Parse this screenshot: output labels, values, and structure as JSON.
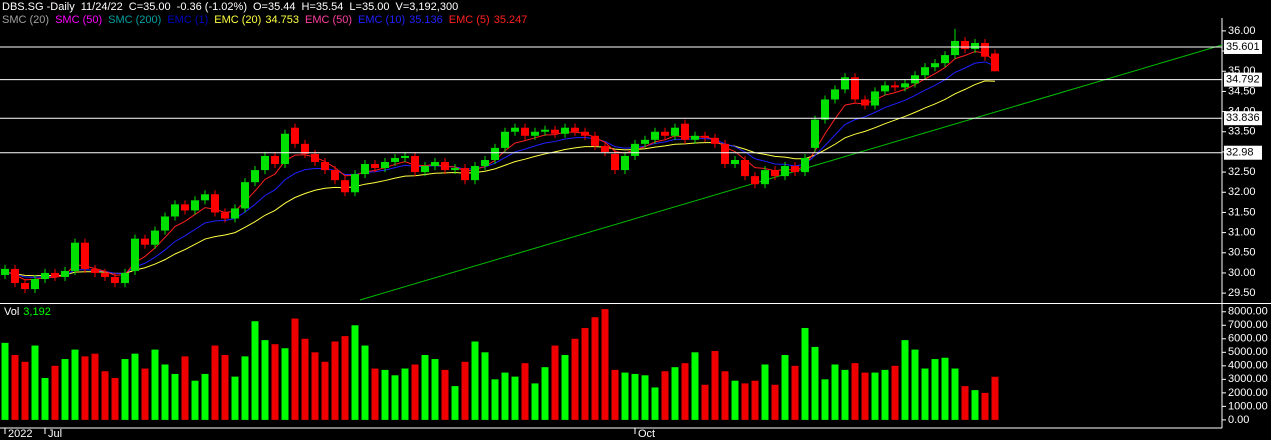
{
  "chart_data": {
    "type": "candlestick",
    "header": [
      "DBS.SG -Daily",
      "11/24/22",
      "C=35.00",
      "-0.36 (-1.02%)",
      "O=35.44",
      "H=35.54",
      "L=35.00",
      "V=3,192,300"
    ],
    "legend": [
      {
        "name": "SMC (20)",
        "color": "#a0a0a0"
      },
      {
        "name": "SMC (50)",
        "color": "#ff00ff"
      },
      {
        "name": "SMC (200)",
        "color": "#00a0a0"
      },
      {
        "name": "EMC (1)",
        "color": "#0000c0"
      },
      {
        "name": "EMC (20)",
        "value": 34.753,
        "color": "#ffff40"
      },
      {
        "name": "EMC (50)",
        "color": "#ff40a0"
      },
      {
        "name": "EMC (10)",
        "value": 35.136,
        "color": "#2020ff"
      },
      {
        "name": "EMC (5)",
        "value": 35.247,
        "color": "#ff2020"
      }
    ],
    "categories": [
      "2022",
      null,
      null,
      null,
      "Jul",
      null,
      null,
      null,
      null,
      null,
      null,
      null,
      null,
      null,
      null,
      null,
      null,
      null,
      null,
      null,
      null,
      null,
      null,
      null,
      null,
      null,
      null,
      null,
      null,
      null,
      null,
      null,
      null,
      null,
      null,
      null,
      null,
      null,
      null,
      null,
      null,
      null,
      null,
      null,
      null,
      null,
      null,
      null,
      null,
      null,
      null,
      null,
      null,
      null,
      null,
      null,
      null,
      null,
      null,
      null,
      null,
      null,
      null,
      "Oct",
      null,
      null,
      null,
      null,
      null,
      null,
      null,
      null,
      null,
      null,
      null,
      null,
      null,
      null,
      null,
      null,
      null,
      null,
      null,
      null,
      null,
      null,
      null,
      null,
      null,
      null,
      null,
      null,
      null,
      null,
      null,
      null,
      null,
      null,
      null,
      null
    ],
    "open": [
      29.95,
      30.1,
      29.75,
      29.6,
      29.85,
      30.0,
      29.9,
      30.05,
      30.75,
      30.1,
      30.0,
      29.9,
      29.75,
      30.05,
      30.85,
      30.7,
      31.05,
      31.4,
      31.7,
      31.55,
      31.8,
      31.95,
      31.5,
      31.35,
      31.6,
      32.25,
      32.55,
      32.9,
      32.7,
      33.6,
      33.2,
      32.95,
      32.75,
      32.55,
      32.3,
      32.0,
      32.45,
      32.7,
      32.6,
      32.75,
      32.85,
      32.9,
      32.5,
      32.65,
      32.75,
      32.55,
      32.6,
      32.3,
      32.65,
      32.8,
      33.1,
      33.5,
      33.6,
      33.4,
      33.5,
      33.55,
      33.45,
      33.6,
      33.5,
      33.4,
      33.15,
      32.95,
      32.55,
      32.9,
      33.2,
      33.3,
      33.5,
      33.4,
      33.7,
      33.3,
      33.4,
      33.35,
      33.2,
      32.7,
      32.8,
      32.4,
      32.2,
      32.55,
      32.4,
      32.65,
      32.5,
      33.1,
      33.8,
      34.3,
      34.55,
      34.85,
      34.3,
      34.15,
      34.5,
      34.65,
      34.6,
      34.7,
      34.9,
      35.1,
      35.2,
      35.4,
      35.75,
      35.55,
      35.7,
      35.44
    ],
    "high": [
      30.2,
      30.2,
      29.85,
      29.95,
      30.1,
      30.1,
      30.15,
      30.85,
      30.85,
      30.2,
      30.1,
      30.0,
      30.1,
      30.95,
      30.95,
      31.15,
      31.5,
      31.8,
      31.8,
      31.9,
      32.05,
      32.05,
      31.6,
      31.7,
      32.35,
      32.65,
      33.0,
      33.0,
      33.55,
      33.7,
      33.3,
      33.05,
      32.85,
      32.65,
      32.4,
      32.55,
      32.8,
      32.8,
      32.85,
      32.95,
      33.0,
      33.0,
      32.75,
      32.85,
      32.85,
      32.7,
      32.7,
      32.75,
      32.9,
      33.2,
      33.6,
      33.7,
      33.7,
      33.6,
      33.65,
      33.65,
      33.7,
      33.7,
      33.6,
      33.5,
      33.25,
      33.05,
      33.0,
      33.3,
      33.4,
      33.6,
      33.6,
      33.7,
      33.8,
      33.5,
      33.5,
      33.45,
      33.3,
      32.9,
      32.9,
      32.5,
      32.65,
      32.65,
      32.75,
      32.75,
      32.95,
      33.9,
      34.4,
      34.65,
      34.95,
      34.95,
      34.4,
      34.6,
      34.75,
      34.75,
      34.8,
      35.0,
      35.2,
      35.3,
      35.5,
      36.05,
      35.85,
      35.8,
      35.8,
      35.54
    ],
    "low": [
      29.85,
      29.65,
      29.5,
      29.5,
      29.75,
      29.8,
      29.8,
      29.95,
      30.0,
      29.9,
      29.8,
      29.65,
      29.65,
      29.95,
      30.6,
      30.6,
      30.95,
      31.3,
      31.45,
      31.45,
      31.7,
      31.4,
      31.25,
      31.25,
      31.5,
      32.15,
      32.45,
      32.6,
      32.6,
      33.1,
      32.85,
      32.65,
      32.45,
      32.2,
      31.9,
      31.9,
      32.35,
      32.5,
      32.5,
      32.65,
      32.75,
      32.4,
      32.4,
      32.55,
      32.45,
      32.45,
      32.2,
      32.2,
      32.55,
      32.7,
      33.0,
      33.4,
      33.3,
      33.3,
      33.4,
      33.35,
      33.35,
      33.4,
      33.3,
      33.05,
      32.9,
      32.45,
      32.45,
      32.8,
      33.1,
      33.2,
      33.3,
      33.3,
      33.2,
      33.2,
      33.25,
      33.1,
      32.6,
      32.6,
      32.3,
      32.1,
      32.1,
      32.3,
      32.3,
      32.4,
      32.4,
      33.0,
      33.7,
      34.2,
      34.45,
      34.2,
      34.05,
      34.05,
      34.4,
      34.5,
      34.5,
      34.6,
      34.8,
      35.0,
      35.1,
      35.3,
      35.45,
      35.45,
      35.26,
      35.0
    ],
    "close": [
      30.1,
      29.75,
      29.6,
      29.85,
      30.0,
      29.9,
      30.05,
      30.75,
      30.1,
      30.0,
      29.9,
      29.75,
      30.0,
      30.85,
      30.7,
      31.05,
      31.4,
      31.7,
      31.55,
      31.8,
      31.95,
      31.5,
      31.35,
      31.6,
      32.25,
      32.55,
      32.9,
      32.7,
      33.45,
      33.2,
      32.95,
      32.75,
      32.55,
      32.3,
      32.0,
      32.45,
      32.7,
      32.6,
      32.75,
      32.85,
      32.9,
      32.5,
      32.65,
      32.75,
      32.55,
      32.6,
      32.3,
      32.65,
      32.8,
      33.1,
      33.5,
      33.6,
      33.4,
      33.5,
      33.55,
      33.45,
      33.6,
      33.5,
      33.4,
      33.15,
      33.0,
      32.55,
      32.9,
      33.2,
      33.3,
      33.5,
      33.4,
      33.6,
      33.3,
      33.4,
      33.35,
      33.2,
      32.7,
      32.8,
      32.4,
      32.2,
      32.55,
      32.4,
      32.65,
      32.5,
      32.85,
      33.8,
      34.3,
      34.55,
      34.85,
      34.3,
      34.15,
      34.5,
      34.65,
      34.6,
      34.7,
      34.9,
      35.1,
      35.2,
      35.4,
      35.75,
      35.55,
      35.7,
      35.36,
      35.0
    ],
    "up_color": "#00e000",
    "down_color": "#ff0000",
    "lines": [
      {
        "color": "#ffff40",
        "values": [
          30.01,
          29.98,
          29.94,
          29.93,
          29.94,
          29.93,
          29.95,
          30.02,
          30.03,
          30.03,
          30.02,
          29.99,
          29.99,
          30.07,
          30.13,
          30.22,
          30.33,
          30.47,
          30.58,
          30.71,
          30.84,
          30.9,
          30.94,
          31.0,
          31.13,
          31.27,
          31.43,
          31.55,
          31.73,
          31.87,
          31.97,
          32.05,
          32.1,
          32.12,
          32.11,
          32.14,
          32.2,
          32.24,
          32.29,
          32.35,
          32.4,
          32.41,
          32.44,
          32.47,
          32.48,
          32.49,
          32.47,
          32.49,
          32.52,
          32.58,
          32.67,
          32.76,
          32.82,
          32.89,
          32.95,
          33.0,
          33.06,
          33.1,
          33.13,
          33.13,
          33.12,
          33.07,
          33.05,
          33.06,
          33.08,
          33.12,
          33.15,
          33.19,
          33.2,
          33.22,
          33.23,
          33.23,
          33.18,
          33.14,
          33.07,
          32.98,
          32.94,
          32.89,
          32.87,
          32.83,
          32.83,
          32.92,
          33.05,
          33.19,
          33.35,
          33.44,
          33.51,
          33.6,
          33.7,
          33.79,
          33.88,
          33.98,
          34.09,
          34.19,
          34.3,
          34.44,
          34.55,
          34.67,
          34.76,
          34.753
        ]
      },
      {
        "color": "#2020ff",
        "values": [
          30.02,
          29.97,
          29.9,
          29.89,
          29.91,
          29.91,
          29.93,
          30.08,
          30.08,
          30.07,
          30.04,
          29.99,
          29.99,
          30.15,
          30.24,
          30.39,
          30.57,
          30.78,
          30.92,
          31.08,
          31.24,
          31.29,
          31.3,
          31.35,
          31.51,
          31.7,
          31.92,
          32.06,
          32.31,
          32.47,
          32.56,
          32.59,
          32.59,
          32.54,
          32.44,
          32.44,
          32.49,
          32.51,
          32.55,
          32.61,
          32.67,
          32.64,
          32.64,
          32.66,
          32.64,
          32.63,
          32.57,
          32.59,
          32.63,
          32.72,
          32.86,
          33.0,
          33.07,
          33.15,
          33.22,
          33.26,
          33.32,
          33.35,
          33.36,
          33.32,
          33.26,
          33.13,
          33.09,
          33.11,
          33.14,
          33.21,
          33.25,
          33.31,
          33.31,
          33.33,
          33.33,
          33.31,
          33.2,
          33.13,
          33.0,
          32.83,
          32.77,
          32.7,
          32.69,
          32.65,
          32.69,
          32.91,
          33.16,
          33.42,
          33.68,
          33.8,
          33.87,
          33.98,
          34.1,
          34.19,
          34.28,
          34.4,
          34.53,
          34.65,
          34.79,
          34.97,
          35.08,
          35.2,
          35.23,
          35.136
        ]
      },
      {
        "color": "#ff2020",
        "values": [
          30.05,
          29.95,
          29.83,
          29.84,
          29.89,
          29.89,
          29.94,
          30.21,
          30.17,
          30.11,
          30.04,
          29.94,
          29.96,
          30.26,
          30.41,
          30.62,
          30.88,
          31.15,
          31.28,
          31.45,
          31.62,
          31.58,
          31.5,
          31.53,
          31.77,
          32.03,
          32.32,
          32.45,
          32.78,
          32.92,
          32.93,
          32.87,
          32.76,
          32.61,
          32.41,
          32.42,
          32.51,
          32.54,
          32.61,
          32.69,
          32.76,
          32.67,
          32.66,
          32.69,
          32.64,
          32.63,
          32.52,
          32.56,
          32.64,
          32.79,
          33.03,
          33.22,
          33.28,
          33.35,
          33.42,
          33.43,
          33.49,
          33.49,
          33.46,
          33.36,
          33.24,
          33.01,
          32.97,
          33.05,
          33.13,
          33.25,
          33.3,
          33.4,
          33.37,
          33.38,
          33.37,
          33.31,
          33.11,
          33.01,
          32.81,
          32.61,
          32.59,
          32.53,
          32.57,
          32.55,
          32.65,
          33.03,
          33.45,
          33.82,
          34.16,
          34.21,
          34.19,
          34.29,
          34.41,
          34.47,
          34.55,
          34.67,
          34.81,
          34.94,
          35.09,
          35.31,
          35.39,
          35.49,
          35.45,
          35.247
        ]
      }
    ],
    "levels": [
      35.601,
      34.792,
      33.836,
      32.98
    ],
    "trendline": {
      "color": "#00c000",
      "x": [
        35.5,
        121.7
      ],
      "y": [
        29.33,
        35.65
      ]
    },
    "ylim": [
      29.28,
      36.27
    ],
    "yticks": [
      {
        "value": 29.5,
        "label": "29.50"
      },
      {
        "value": 30,
        "label": "30.00"
      },
      {
        "value": 30.5,
        "label": "30.50"
      },
      {
        "value": 31,
        "label": "31.00"
      },
      {
        "value": 31.5,
        "label": "31.50"
      },
      {
        "value": 32,
        "label": "32.00"
      },
      {
        "value": 32.5,
        "label": "32.50"
      },
      {
        "value": 33,
        "label": "33.00"
      },
      {
        "value": 33.5,
        "label": "33.50"
      },
      {
        "value": 34,
        "label": "34.00"
      },
      {
        "value": 34.5,
        "label": "34.50"
      },
      {
        "value": 35,
        "label": "35.00"
      },
      {
        "value": 35.5,
        "label": "35.50"
      },
      {
        "value": 36,
        "label": "36.00"
      }
    ],
    "volume": {
      "name": "Vol",
      "last": "3,192",
      "last_color": "#00ff00",
      "up_color": "#00ff00",
      "down_color": "#ee0000",
      "values": [
        5700,
        4800,
        4300,
        5500,
        3100,
        4000,
        4500,
        5200,
        4700,
        4900,
        3600,
        3100,
        4500,
        4900,
        3800,
        5200,
        4100,
        3400,
        4700,
        2900,
        3400,
        5500,
        4800,
        3200,
        4700,
        7300,
        5900,
        5600,
        5300,
        7500,
        6000,
        5000,
        4300,
        5800,
        6200,
        7000,
        5500,
        3800,
        3700,
        3300,
        3800,
        4100,
        4800,
        4500,
        3700,
        2500,
        4300,
        5800,
        5000,
        3000,
        3500,
        3200,
        4200,
        2700,
        3900,
        5500,
        4800,
        6000,
        6800,
        7600,
        8200,
        3700,
        3500,
        3400,
        3300,
        2400,
        3600,
        3900,
        4200,
        5000,
        2600,
        5100,
        3600,
        2900,
        2700,
        2900,
        4100,
        2600,
        4800,
        4000,
        6800,
        5400,
        3000,
        4100,
        3700,
        4200,
        3500,
        3500,
        3700,
        4000,
        5900,
        5200,
        3800,
        4500,
        4600,
        3800,
        2500,
        2200,
        2000,
        3192
      ],
      "ylim": [
        -600,
        8500
      ],
      "yticks": [
        {
          "value": 0,
          "label": "0.00"
        },
        {
          "value": 1000,
          "label": "1000.00"
        },
        {
          "value": 2000,
          "label": "2000.00"
        },
        {
          "value": 3000,
          "label": "3000.00"
        },
        {
          "value": 4000,
          "label": "4000.00"
        },
        {
          "value": 5000,
          "label": "5000.00"
        },
        {
          "value": 6000,
          "label": "6000.00"
        },
        {
          "value": 7000,
          "label": "7000.00"
        },
        {
          "value": 8000,
          "label": "8000.00"
        }
      ]
    }
  }
}
